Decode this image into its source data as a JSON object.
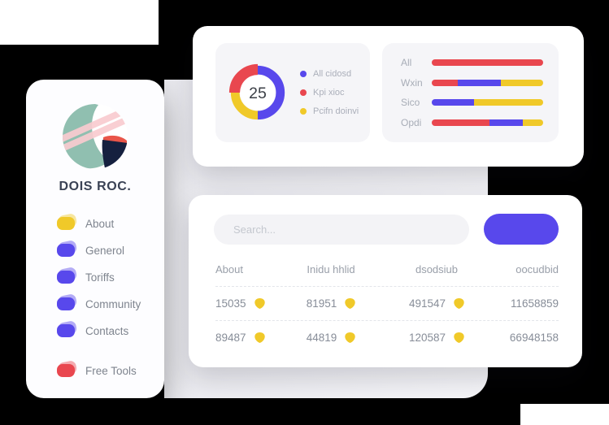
{
  "colors": {
    "indigo": "#5848EC",
    "red": "#E9474F",
    "yellow": "#F0C929",
    "navy": "#15203F",
    "teal": "#90BFB0",
    "pink": "#F9CBD0",
    "logo_red": "#E95549"
  },
  "sidebar": {
    "title": "DOIS ROC.",
    "items": [
      {
        "label": "About",
        "color": "#F0C929"
      },
      {
        "label": "Generol",
        "color": "#5848EC"
      },
      {
        "label": "Toriffs",
        "color": "#5848EC"
      },
      {
        "label": "Community",
        "color": "#5848EC"
      },
      {
        "label": "Contacts",
        "color": "#5848EC"
      },
      {
        "label": "Free Tools",
        "color": "#E9474F"
      }
    ]
  },
  "chart_data": [
    {
      "type": "pie",
      "subtype": "donut",
      "center_value": "25",
      "legend_position": "right",
      "segments": [
        {
          "label": "All cidosd",
          "color": "#5848EC",
          "value": 50
        },
        {
          "label": "Kpi xioc",
          "color": "#E9474F",
          "value": 25
        },
        {
          "label": "Pcifn doinvi",
          "color": "#F0C929",
          "value": 25
        }
      ]
    },
    {
      "type": "bar",
      "stacked": true,
      "orientation": "horizontal",
      "categories": [
        "All",
        "Wxin",
        "Sico",
        "Opdi"
      ],
      "series": [
        {
          "name": "Kpi xioc",
          "color": "#E9474F",
          "values": [
            100,
            23,
            0,
            52
          ]
        },
        {
          "name": "All cidosd",
          "color": "#5848EC",
          "values": [
            0,
            39,
            38,
            30
          ]
        },
        {
          "name": "Pcifn doinvi",
          "color": "#F0C929",
          "values": [
            0,
            38,
            62,
            18
          ]
        }
      ],
      "xlim": [
        0,
        100
      ],
      "grid": false
    }
  ],
  "search": {
    "placeholder": "Search..."
  },
  "table": {
    "headers": [
      "About",
      "Inidu hhlid",
      "dsodsiub",
      "oocudbid"
    ],
    "rows": [
      {
        "cells": [
          {
            "value": "15035",
            "badge": true
          },
          {
            "value": "81951",
            "badge": true
          },
          {
            "value": "491547",
            "badge": true
          },
          {
            "value": "11658859",
            "badge": false
          }
        ]
      },
      {
        "cells": [
          {
            "value": "89487",
            "badge": true
          },
          {
            "value": "44819",
            "badge": true
          },
          {
            "value": "120587",
            "badge": true
          },
          {
            "value": "66948158",
            "badge": false
          }
        ]
      }
    ]
  }
}
